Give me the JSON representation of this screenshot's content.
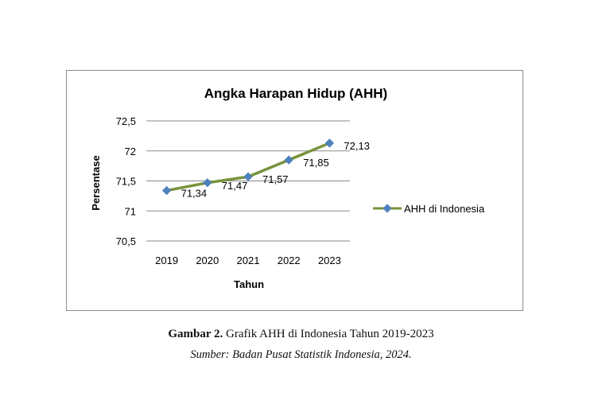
{
  "chart_data": {
    "type": "line",
    "title": "Angka Harapan Hidup (AHH)",
    "xlabel": "Tahun",
    "ylabel": "Persentase",
    "categories": [
      "2019",
      "2020",
      "2021",
      "2022",
      "2023"
    ],
    "series": [
      {
        "name": "AHH di Indonesia",
        "values": [
          71.34,
          71.47,
          71.57,
          71.85,
          72.13
        ],
        "data_labels": [
          "71,34",
          "71,47",
          "71,57",
          "71,85",
          "72,13"
        ],
        "color": "#77933c",
        "marker_color": "#4f81bd"
      }
    ],
    "ylim": [
      70.5,
      72.5
    ],
    "yticks": [
      70.5,
      71,
      71.5,
      72,
      72.5
    ],
    "ytick_labels": [
      "70,5",
      "71",
      "71,5",
      "72",
      "72,5"
    ],
    "grid": true,
    "legend": "right"
  },
  "caption": {
    "label": "Gambar 2.",
    "text": " Grafik AHH di Indonesia Tahun 2019-2023",
    "source": "Sumber: Badan Pusat Statistik Indonesia, 2024."
  }
}
